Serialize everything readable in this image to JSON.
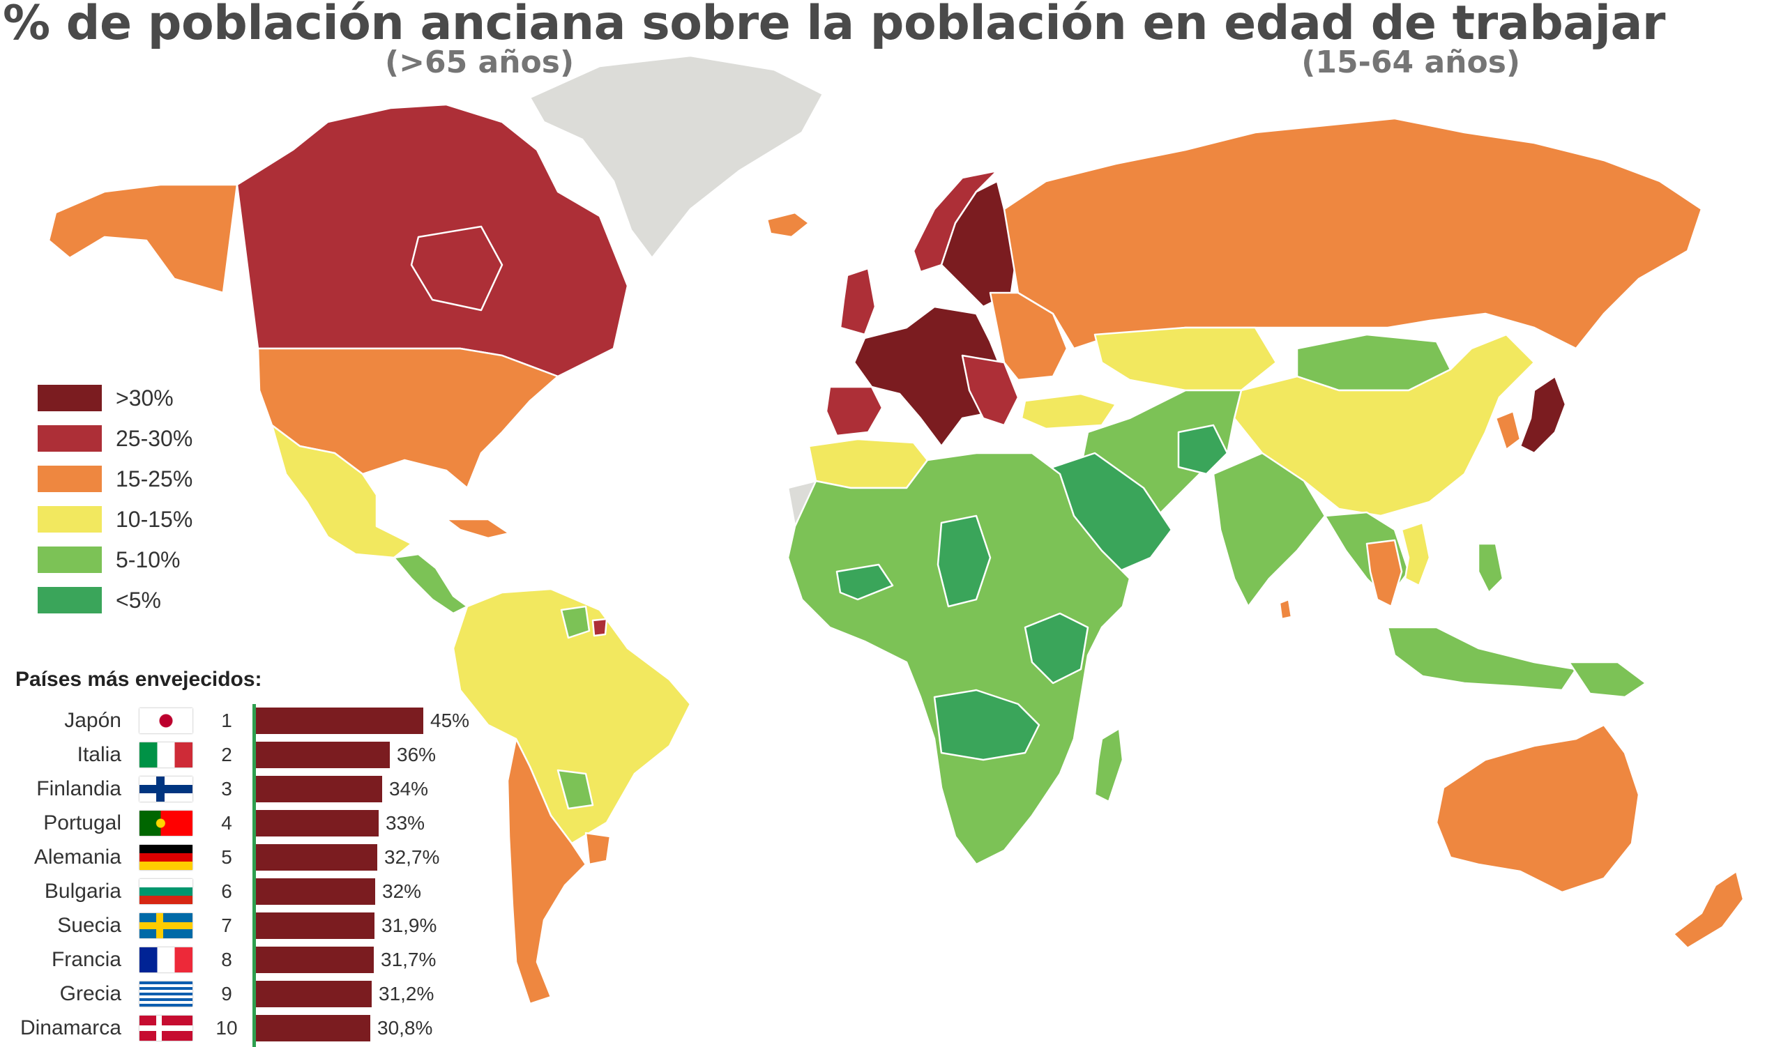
{
  "title": "% de población anciana sobre la población en edad de trabajar",
  "subtitle_left": "(>65 años)",
  "subtitle_right": "(15-64 años)",
  "colors": {
    "c30": "#7b1c20",
    "c25": "#ad2f37",
    "c15": "#ee8740",
    "c10": "#f2e85f",
    "c5": "#7cc256",
    "c0": "#3aa55a",
    "nodata": "#dcdcd8",
    "border": "#ffffff"
  },
  "legend": [
    {
      "label": ">30%",
      "key": "c30"
    },
    {
      "label": "25-30%",
      "key": "c25"
    },
    {
      "label": "15-25%",
      "key": "c15"
    },
    {
      "label": "10-15%",
      "key": "c10"
    },
    {
      "label": "5-10%",
      "key": "c5"
    },
    {
      "label": "<5%",
      "key": "c0"
    }
  ],
  "ranking": {
    "title": "Países más envejecidos:",
    "items": [
      {
        "rank": "1",
        "country": "Japón",
        "value": 45,
        "label": "45%",
        "flag": "jp"
      },
      {
        "rank": "2",
        "country": "Italia",
        "value": 36,
        "label": "36%",
        "flag": "it"
      },
      {
        "rank": "3",
        "country": "Finlandia",
        "value": 34,
        "label": "34%",
        "flag": "fi"
      },
      {
        "rank": "4",
        "country": "Portugal",
        "value": 33,
        "label": "33%",
        "flag": "pt"
      },
      {
        "rank": "5",
        "country": "Alemania",
        "value": 32.7,
        "label": "32,7%",
        "flag": "de"
      },
      {
        "rank": "6",
        "country": "Bulgaria",
        "value": 32,
        "label": "32%",
        "flag": "bg"
      },
      {
        "rank": "7",
        "country": "Suecia",
        "value": 31.9,
        "label": "31,9%",
        "flag": "se"
      },
      {
        "rank": "8",
        "country": "Francia",
        "value": 31.7,
        "label": "31,7%",
        "flag": "fr"
      },
      {
        "rank": "9",
        "country": "Grecia",
        "value": 31.2,
        "label": "31,2%",
        "flag": "gr"
      },
      {
        "rank": "10",
        "country": "Dinamarca",
        "value": 30.8,
        "label": "30,8%",
        "flag": "dk"
      }
    ]
  },
  "regions": [
    {
      "name": "greenland",
      "cls": "nodata"
    },
    {
      "name": "alaska",
      "cls": "c15"
    },
    {
      "name": "canada",
      "cls": "c25"
    },
    {
      "name": "usa",
      "cls": "c15"
    },
    {
      "name": "mexico",
      "cls": "c10"
    },
    {
      "name": "central-america",
      "cls": "c5"
    },
    {
      "name": "caribbean",
      "cls": "c15"
    },
    {
      "name": "south-america",
      "cls": "c10"
    },
    {
      "name": "argentina-chile",
      "cls": "c15"
    },
    {
      "name": "uruguay",
      "cls": "c15"
    },
    {
      "name": "paraguay",
      "cls": "c5"
    },
    {
      "name": "guyana",
      "cls": "c5"
    },
    {
      "name": "french-guiana",
      "cls": "c25"
    },
    {
      "name": "iceland",
      "cls": "c15"
    },
    {
      "name": "scandinavia",
      "cls": "c30"
    },
    {
      "name": "norway",
      "cls": "c25"
    },
    {
      "name": "western-europe",
      "cls": "c30"
    },
    {
      "name": "uk-ireland",
      "cls": "c25"
    },
    {
      "name": "iberia",
      "cls": "c25"
    },
    {
      "name": "eastern-europe",
      "cls": "c15"
    },
    {
      "name": "balkans",
      "cls": "c25"
    },
    {
      "name": "russia",
      "cls": "c15"
    },
    {
      "name": "turkey",
      "cls": "c10"
    },
    {
      "name": "kazakhstan",
      "cls": "c10"
    },
    {
      "name": "mongolia",
      "cls": "c5"
    },
    {
      "name": "china",
      "cls": "c10"
    },
    {
      "name": "korea",
      "cls": "c15"
    },
    {
      "name": "japan",
      "cls": "c30"
    },
    {
      "name": "central-asia-mideast",
      "cls": "c5"
    },
    {
      "name": "arabia",
      "cls": "c0"
    },
    {
      "name": "afghanistan",
      "cls": "c0"
    },
    {
      "name": "india",
      "cls": "c5"
    },
    {
      "name": "southeast-asia",
      "cls": "c5"
    },
    {
      "name": "thailand",
      "cls": "c15"
    },
    {
      "name": "vietnam",
      "cls": "c10"
    },
    {
      "name": "indonesia",
      "cls": "c5"
    },
    {
      "name": "png",
      "cls": "c5"
    },
    {
      "name": "philippines",
      "cls": "c5"
    },
    {
      "name": "north-africa",
      "cls": "c10"
    },
    {
      "name": "western-sahara",
      "cls": "nodata"
    },
    {
      "name": "africa",
      "cls": "c5"
    },
    {
      "name": "chad",
      "cls": "c0"
    },
    {
      "name": "mali-niger-belt",
      "cls": "c0"
    },
    {
      "name": "east-africa-green",
      "cls": "c0"
    },
    {
      "name": "angola-zambia",
      "cls": "c0"
    },
    {
      "name": "madagascar",
      "cls": "c5"
    },
    {
      "name": "australia",
      "cls": "c15"
    },
    {
      "name": "new-zealand",
      "cls": "c15"
    },
    {
      "name": "sri-lanka",
      "cls": "c15"
    }
  ]
}
